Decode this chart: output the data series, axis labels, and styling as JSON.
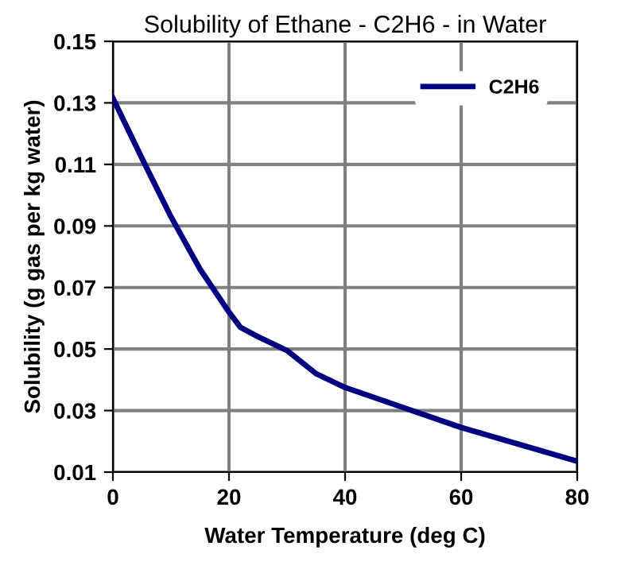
{
  "chart_data": {
    "type": "line",
    "title": "Solubility of Ethane - C2H6 - in Water",
    "xlabel": "Water Temperature (deg C)",
    "ylabel": "Solubility (g gas per kg water)",
    "x": [
      0,
      5,
      10,
      15,
      20,
      22,
      25,
      30,
      35,
      40,
      50,
      60,
      70,
      80
    ],
    "series": [
      {
        "name": "C2H6",
        "color": "#000080",
        "values": [
          0.1315,
          0.112,
          0.093,
          0.076,
          0.062,
          0.057,
          0.054,
          0.0495,
          0.042,
          0.0375,
          0.031,
          0.0245,
          0.019,
          0.0135
        ]
      }
    ],
    "xlim": [
      0,
      80
    ],
    "ylim": [
      0.01,
      0.15
    ],
    "xticks": [
      0,
      20,
      40,
      60,
      80
    ],
    "yticks": [
      {
        "value": 0.01,
        "label": "0.01"
      },
      {
        "value": 0.03,
        "label": "0.03"
      },
      {
        "value": 0.05,
        "label": "0.05"
      },
      {
        "value": 0.07,
        "label": "0.07"
      },
      {
        "value": 0.09,
        "label": "0.09"
      },
      {
        "value": 0.11,
        "label": "0.11"
      },
      {
        "value": 0.13,
        "label": "0.13"
      },
      {
        "value": 0.15,
        "label": "0.15"
      }
    ],
    "grid": true,
    "legend": "top right",
    "line_style": "solid",
    "marker": "none"
  }
}
